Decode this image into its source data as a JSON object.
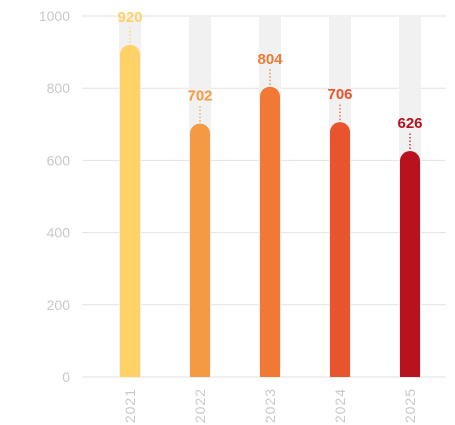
{
  "chart_data": {
    "type": "bar",
    "categories": [
      "2021",
      "2022",
      "2023",
      "2024",
      "2025"
    ],
    "values": [
      920,
      702,
      804,
      706,
      626
    ],
    "value_labels": [
      "920",
      "702",
      "804",
      "706",
      "626"
    ],
    "colors": [
      "#ffd166",
      "#f39a42",
      "#f07a35",
      "#e8542e",
      "#b8121f"
    ],
    "ylim": [
      0,
      1000
    ],
    "yticks": [
      0,
      200,
      400,
      600,
      800,
      1000
    ],
    "ytick_labels": [
      "0",
      "200",
      "400",
      "600",
      "800",
      "1000"
    ],
    "grid": true,
    "background_track_color": "#f1f1f1",
    "grid_color": "#e2e2e2",
    "title": "",
    "xlabel": "",
    "ylabel": ""
  }
}
